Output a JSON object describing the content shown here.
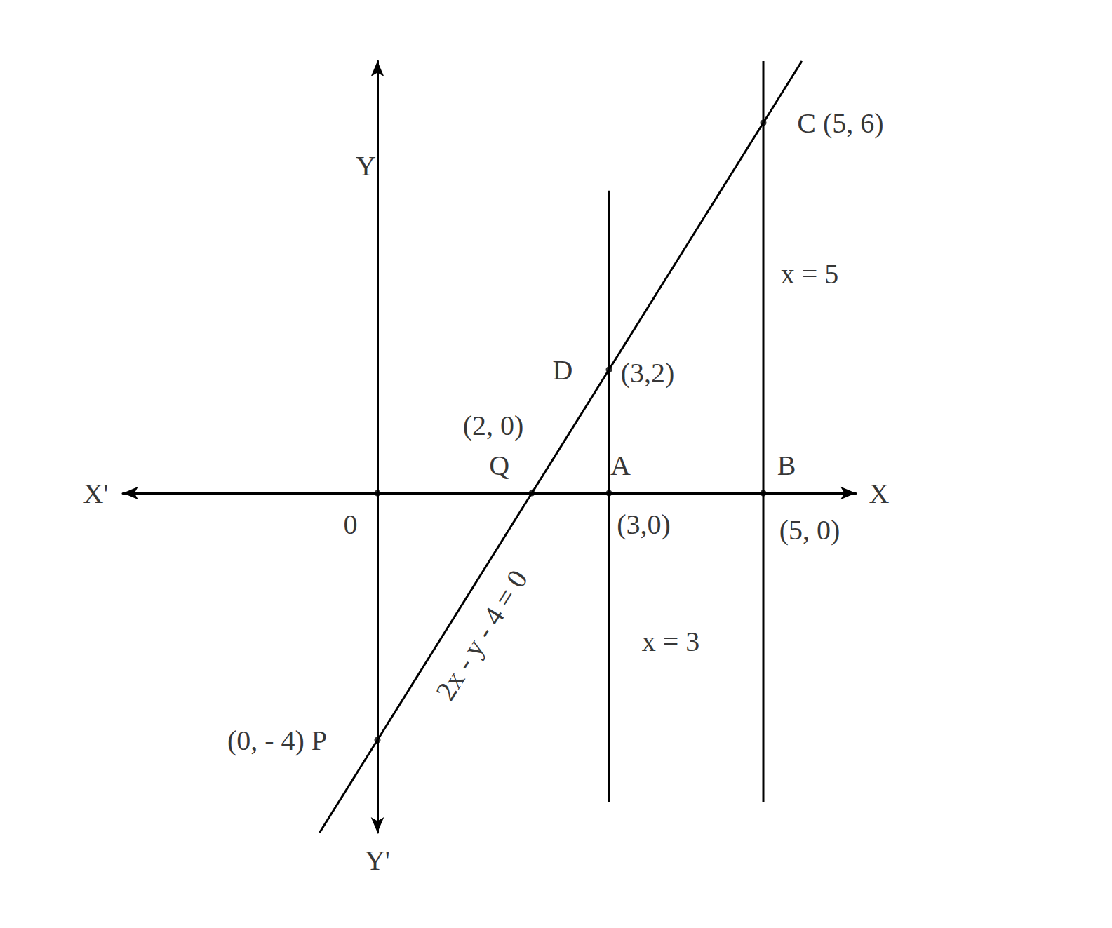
{
  "chart_data": {
    "type": "line",
    "xlim": [
      -3.3,
      6.2
    ],
    "ylim": [
      -5.5,
      7
    ],
    "grid": false,
    "tick_labels": false,
    "series": [
      {
        "x": [
          -0.75,
          0,
          2,
          3,
          5,
          5.5
        ],
        "values": [
          -5.5,
          -4,
          0,
          2,
          6,
          7
        ],
        "color": "#000000",
        "line_style": "solid"
      },
      {
        "x": [
          3,
          3
        ],
        "values": [
          -5,
          4.9
        ],
        "color": "#000000",
        "line_style": "solid"
      },
      {
        "x": [
          5,
          5
        ],
        "values": [
          -5,
          7
        ],
        "color": "#000000",
        "line_style": "solid"
      },
      {
        "type": "scatter",
        "marker": "circle",
        "x": [
          0,
          2,
          3,
          5,
          3,
          5,
          0
        ],
        "values": [
          -4,
          0,
          2,
          6,
          0,
          0,
          0
        ],
        "color": "#000000"
      }
    ],
    "annotations": [
      {
        "text": "C (5, 6)",
        "x": 6.0,
        "y": 6.0
      },
      {
        "text": "D",
        "x": 2.4,
        "y": 2.0
      },
      {
        "text": "(3,2)",
        "x": 3.5,
        "y": 1.95
      },
      {
        "text": "(2, 0)",
        "x": 1.5,
        "y": 1.1
      },
      {
        "text": "Q",
        "x": 1.58,
        "y": 0.45
      },
      {
        "text": "A",
        "x": 3.15,
        "y": 0.45
      },
      {
        "text": "(3,0)",
        "x": 3.45,
        "y": -0.5
      },
      {
        "text": "B",
        "x": 5.3,
        "y": 0.45
      },
      {
        "text": "(5, 0)",
        "x": 5.6,
        "y": -0.6
      },
      {
        "text": "2x - y - 4 = 0",
        "x": 1.35,
        "y": -2.3
      },
      {
        "text": "x = 3",
        "x": 3.8,
        "y": -2.4
      },
      {
        "text": "x = 5",
        "x": 5.6,
        "y": 3.55
      },
      {
        "text": "(0, - 4) P",
        "x": -1.3,
        "y": -4.0
      },
      {
        "text": "0",
        "x": -0.35,
        "y": -0.5
      },
      {
        "text": "X",
        "x": 6.5,
        "y": 0
      },
      {
        "text": "X'",
        "x": -3.65,
        "y": 0
      },
      {
        "text": "Y",
        "x": -0.15,
        "y": 5.3
      },
      {
        "text": "Y'",
        "x": 0,
        "y": -5.95
      }
    ]
  }
}
